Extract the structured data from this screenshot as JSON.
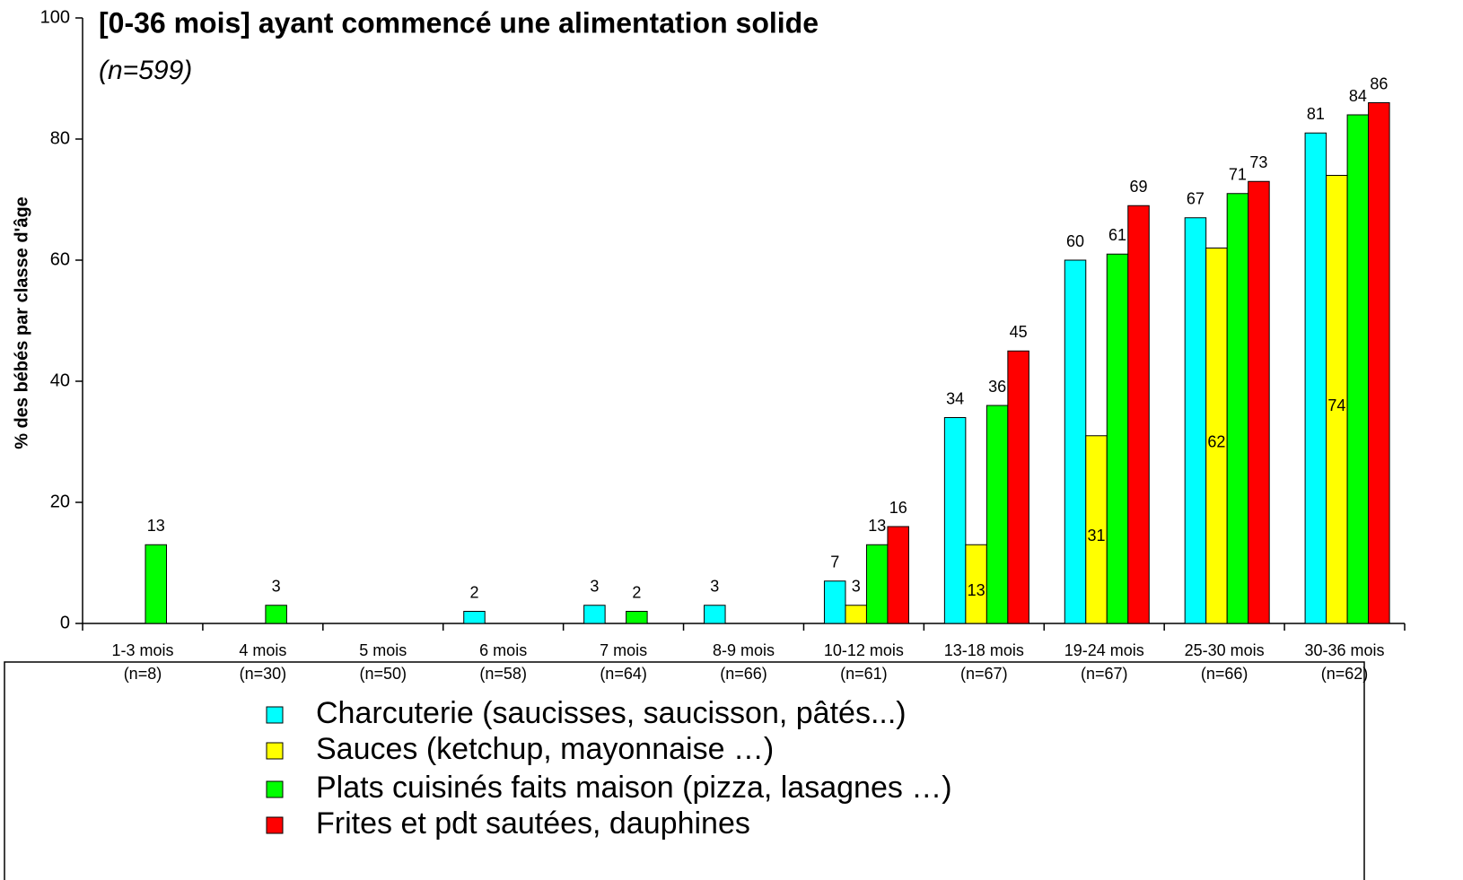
{
  "chart_data": {
    "type": "bar",
    "title": "[0-36 mois] ayant commencé une alimentation solide",
    "subtitle": "(n=599)",
    "y_label": "% des bébés par classe d'âge",
    "categories": [
      "1-3 mois",
      "4 mois",
      "5 mois",
      "6 mois",
      "7 mois",
      "8-9 mois",
      "10-12 mois",
      "13-18 mois",
      "19-24 mois",
      "25-30 mois",
      "30-36 mois"
    ],
    "category_notes": [
      "(n=8)",
      "(n=30)",
      "(n=50)",
      "(n=58)",
      "(n=64)",
      "(n=66)",
      "(n=61)",
      "(n=67)",
      "(n=67)",
      "(n=66)",
      "(n=62)"
    ],
    "series": [
      {
        "name": "Charcuterie (saucisses, saucisson, pâtés...)",
        "color": "#00ffff",
        "values": [
          null,
          null,
          null,
          2,
          3,
          3,
          7,
          34,
          60,
          67,
          81
        ]
      },
      {
        "name": "Sauces (ketchup, mayonnaise …)",
        "color": "#ffff00",
        "values": [
          null,
          null,
          null,
          null,
          null,
          null,
          3,
          13,
          31,
          62,
          74
        ]
      },
      {
        "name": "Plats cuisinés faits maison (pizza, lasagnes …)",
        "color": "#00ff00",
        "values": [
          13,
          3,
          null,
          null,
          2,
          null,
          13,
          36,
          61,
          71,
          84
        ]
      },
      {
        "name": "Frites et pdt sautées, dauphines",
        "color": "#ff0000",
        "values": [
          null,
          null,
          null,
          null,
          null,
          null,
          16,
          45,
          69,
          73,
          86
        ]
      }
    ],
    "ylim": [
      0,
      100
    ],
    "yticks": [
      0,
      20,
      40,
      60,
      80,
      100
    ],
    "grid": false
  }
}
